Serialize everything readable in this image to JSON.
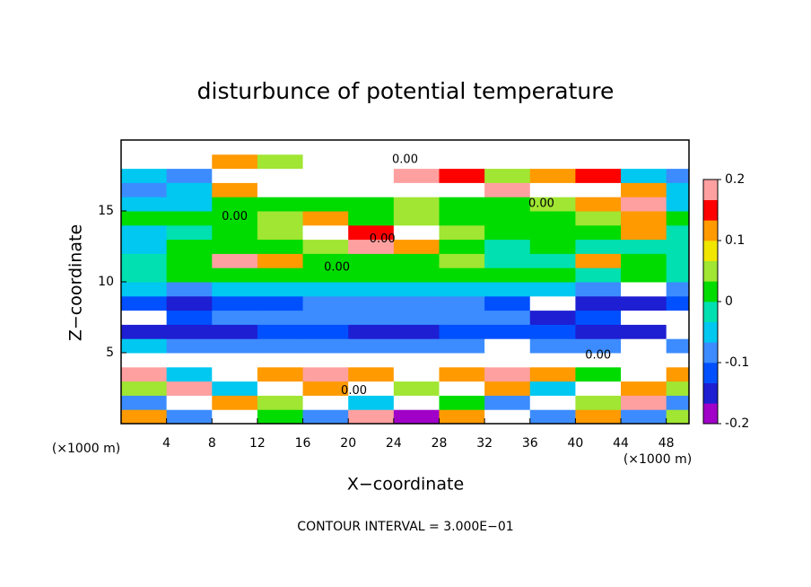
{
  "chart_data": {
    "type": "heatmap",
    "title": "disturbunce of potential temperature",
    "x_label": "X−coordinate",
    "y_label": "Z−coordinate",
    "x_unit_label": "(×1000 m)",
    "y_unit_label": "(×1000 m)",
    "footer": "CONTOUR INTERVAL = 3.000E−01",
    "xlim": [
      0,
      50
    ],
    "ylim": [
      0,
      20
    ],
    "xticks": [
      4,
      8,
      12,
      16,
      20,
      24,
      28,
      32,
      36,
      40,
      44,
      48
    ],
    "yticks": [
      5,
      10,
      15
    ],
    "x_edges": [
      0,
      4,
      8,
      12,
      16,
      20,
      24,
      28,
      32,
      36,
      40,
      44,
      48,
      50
    ],
    "y_edges": [
      0,
      1,
      2,
      3,
      4,
      5,
      6,
      7,
      8,
      9,
      10,
      11,
      12,
      13,
      14,
      15,
      16,
      17,
      18,
      19,
      20
    ],
    "z": [
      [
        0.1,
        -0.1,
        0.3,
        0,
        -0.1,
        0.2,
        -0.2,
        0.1,
        0.3,
        -0.1,
        0.1,
        -0.1,
        0.05
      ],
      [
        -0.1,
        0.3,
        0.1,
        0.05,
        0.3,
        -0.05,
        0.3,
        0,
        -0.1,
        0.3,
        0.05,
        0.2,
        -0.1
      ],
      [
        0.05,
        0.2,
        -0.05,
        0.3,
        0.1,
        0.3,
        0.05,
        0.3,
        0.1,
        -0.05,
        0.3,
        0.1,
        0.05
      ],
      [
        0.2,
        -0.05,
        0.3,
        0.1,
        0.2,
        0.1,
        0.3,
        0.1,
        0.2,
        0.1,
        0,
        0.3,
        0.1
      ],
      [
        0.3,
        0.3,
        0.25,
        0.3,
        0.3,
        0.3,
        0.3,
        0.25,
        -0.3,
        0.3,
        0.3,
        -0.3,
        0.3
      ],
      [
        -0.05,
        -0.08,
        -0.08,
        -0.07,
        -0.07,
        -0.08,
        -0.08,
        -0.07,
        -0.3,
        -0.08,
        -0.07,
        -0.3,
        -0.1
      ],
      [
        -0.15,
        -0.14,
        -0.14,
        -0.13,
        -0.13,
        -0.14,
        -0.14,
        -0.13,
        -0.12,
        -0.13,
        -0.14,
        -0.15,
        -0.3
      ],
      [
        -0.3,
        -0.12,
        -0.1,
        -0.1,
        -0.1,
        -0.1,
        -0.1,
        -0.1,
        -0.1,
        -0.15,
        -0.12,
        -0.3,
        -0.3
      ],
      [
        -0.12,
        -0.14,
        -0.12,
        -0.12,
        -0.1,
        -0.1,
        -0.1,
        -0.1,
        -0.12,
        -0.3,
        -0.14,
        -0.14,
        -0.12
      ],
      [
        -0.06,
        -0.08,
        -0.06,
        -0.06,
        -0.05,
        -0.05,
        -0.04,
        -0.04,
        -0.05,
        -0.06,
        -0.08,
        -0.3,
        -0.08
      ],
      [
        -0.02,
        0,
        0.02,
        0.01,
        0.02,
        0.03,
        0.01,
        0.02,
        0,
        0,
        -0.01,
        0,
        -0.02
      ],
      [
        -0.03,
        0.01,
        0.2,
        0.1,
        0.02,
        0.03,
        0.02,
        0.05,
        -0.02,
        -0.02,
        0.1,
        0,
        -0.02
      ],
      [
        -0.04,
        0.02,
        0,
        0.02,
        0.05,
        0.2,
        0.1,
        0.01,
        -0.01,
        0,
        -0.02,
        -0.03,
        -0.03
      ],
      [
        -0.04,
        -0.03,
        0.02,
        0.04,
        0.3,
        0.15,
        0.3,
        0.05,
        0.01,
        0,
        0.02,
        0.1,
        -0.03
      ],
      [
        0,
        0.02,
        0.03,
        0.05,
        0.1,
        0.03,
        0.04,
        0.02,
        0.01,
        0.03,
        0.05,
        0.1,
        0.02
      ],
      [
        -0.06,
        -0.05,
        0.02,
        0.03,
        0.02,
        0.03,
        0.05,
        0.03,
        0.02,
        0.04,
        0.1,
        0.2,
        -0.05
      ],
      [
        -0.08,
        -0.06,
        0.1,
        0.3,
        0.3,
        0.3,
        0.3,
        0.3,
        0.2,
        0.3,
        0.3,
        0.1,
        -0.06
      ],
      [
        -0.05,
        -0.1,
        0.3,
        0.3,
        -0.3,
        -0.3,
        0.2,
        0.15,
        0.05,
        0.1,
        0.15,
        -0.05,
        -0.08
      ],
      [
        0.3,
        0.3,
        0.1,
        0.05,
        0.3,
        0.3,
        0.3,
        0.3,
        0.3,
        0.3,
        0.3,
        0.3,
        0.3
      ],
      [
        0.3,
        0.3,
        0.3,
        0.3,
        0.3,
        0.3,
        -0.3,
        0.3,
        0.3,
        0.3,
        0.3,
        0.3,
        0.3
      ]
    ],
    "colorbar_lim": [
      -0.2,
      0.2
    ],
    "colorbar_ticks": [
      -0.2,
      -0.1,
      0,
      0.1,
      0.2
    ],
    "colors": [
      "#a000c8",
      "#1e1ed2",
      "#0050ff",
      "#3c8cff",
      "#00c8f0",
      "#00e0b0",
      "#00dc00",
      "#a0e632",
      "#f0e600",
      "#ff9a00",
      "#ff0000",
      "#ffa0a0"
    ],
    "out_of_range_color": "#ffffff",
    "contour_labels": [
      {
        "text": "0.00",
        "x": 25,
        "y": 18.6
      },
      {
        "text": "0.00",
        "x": 10,
        "y": 14.6
      },
      {
        "text": "0.00",
        "x": 19,
        "y": 11.0
      },
      {
        "text": "0.00",
        "x": 23,
        "y": 13.0
      },
      {
        "text": "0.00",
        "x": 37,
        "y": 15.5
      },
      {
        "text": "0.00",
        "x": 20.5,
        "y": 2.3
      },
      {
        "text": "0.00",
        "x": 42,
        "y": 4.8
      }
    ]
  }
}
